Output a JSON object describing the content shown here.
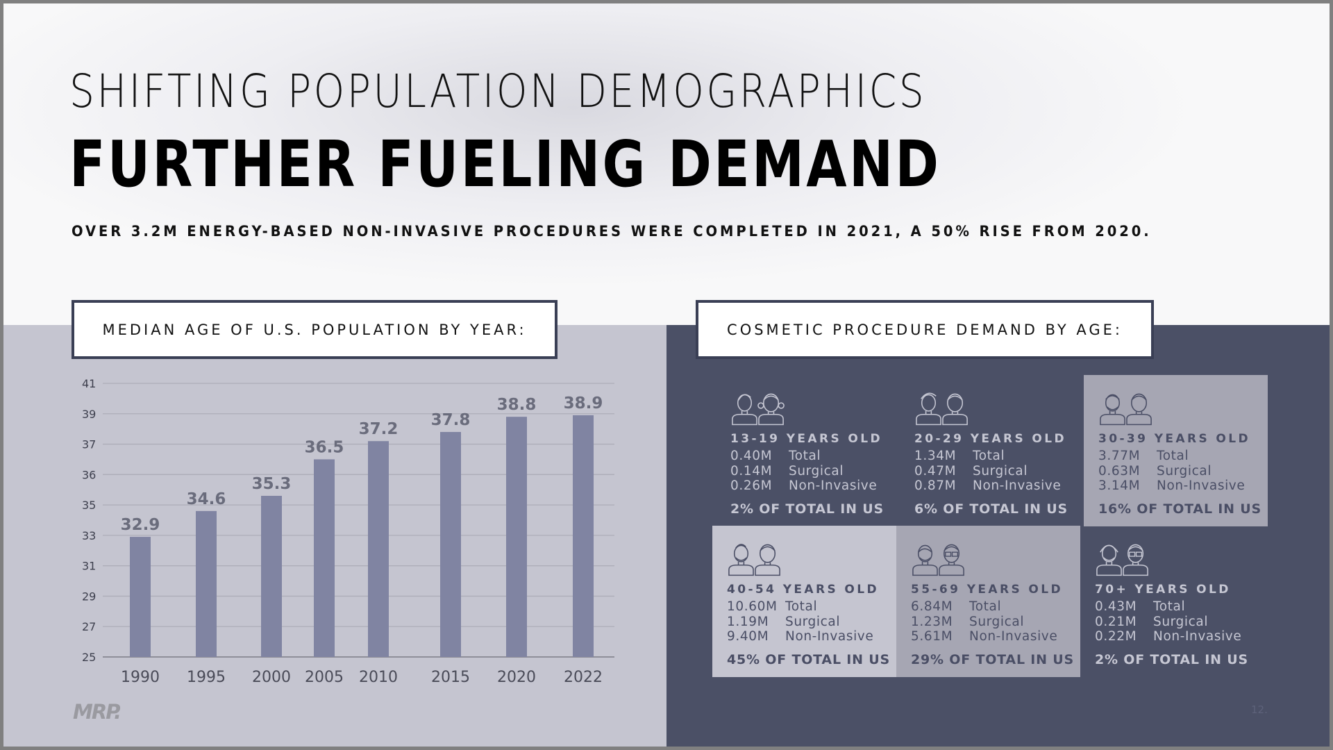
{
  "header": {
    "title_line1": "SHIFTING POPULATION DEMOGRAPHICS",
    "title_line2": "FURTHER FUELING DEMAND",
    "subtitle": "OVER 3.2M ENERGY-BASED NON-INVASIVE PROCEDURES WERE COMPLETED IN 2021, A 50% RISE FROM 2020."
  },
  "left_panel": {
    "label": "MEDIAN AGE OF U.S. POPULATION BY YEAR:"
  },
  "right_panel": {
    "label": "COSMETIC PROCEDURE DEMAND BY AGE:"
  },
  "chart_data": {
    "type": "bar",
    "title": "MEDIAN AGE OF U.S. POPULATION BY YEAR:",
    "xlabel": "",
    "ylabel": "",
    "categories": [
      "1990",
      "1995",
      "2000",
      "2005",
      "2010",
      "2015",
      "2020",
      "2022"
    ],
    "values": [
      32.9,
      34.6,
      35.3,
      36.5,
      37.2,
      37.8,
      38.8,
      38.9
    ],
    "value_labels": [
      "32.9",
      "34.6",
      "35.3",
      "36.5",
      "37.2",
      "37.8",
      "38.8",
      "38.9"
    ],
    "y_ticks": [
      25,
      27,
      29,
      31,
      33,
      35,
      36,
      37,
      39,
      41
    ],
    "ylim": [
      25,
      41
    ],
    "grid": true,
    "bar_color": "#8084a2"
  },
  "demand_cards": [
    {
      "age": "13-19 YEARS OLD",
      "icon": "teen-boy-girl-icon",
      "total": "0.40M",
      "surgical": "0.14M",
      "non_invasive": "0.26M",
      "share": "2% OF TOTAL IN US",
      "style": "dark"
    },
    {
      "age": "20-29 YEARS OLD",
      "icon": "young-adult-man-woman-icon",
      "total": "1.34M",
      "surgical": "0.47M",
      "non_invasive": "0.87M",
      "share": "6% OF TOTAL IN US",
      "style": "dark"
    },
    {
      "age": "30-39 YEARS OLD",
      "icon": "adult-bearded-man-woman-icon",
      "total": "3.77M",
      "surgical": "0.63M",
      "non_invasive": "3.14M",
      "share": "16% OF TOTAL IN US",
      "style": "mid"
    },
    {
      "age": "40-54 YEARS OLD",
      "icon": "middle-aged-man-woman-icon",
      "total": "10.60M",
      "surgical": "1.19M",
      "non_invasive": "9.40M",
      "share": "45% OF TOTAL IN US",
      "style": "light"
    },
    {
      "age": "55-69 YEARS OLD",
      "icon": "senior-man-woman-glasses-icon",
      "total": "6.84M",
      "surgical": "1.23M",
      "non_invasive": "5.61M",
      "share": "29% OF TOTAL IN US",
      "style": "mid"
    },
    {
      "age": "70+ YEARS OLD",
      "icon": "elderly-man-woman-icon",
      "total": "0.43M",
      "surgical": "0.21M",
      "non_invasive": "0.22M",
      "share": "2% OF TOTAL IN US",
      "style": "dark"
    }
  ],
  "stat_labels": {
    "total": "Total",
    "surgical": "Surgical",
    "non_invasive": "Non-Invasive"
  },
  "footer": {
    "logo": "MRP.",
    "page_number": "12."
  },
  "colors": {
    "frame": "#808080",
    "left_panel": "#c5c5d0",
    "right_panel": "#4b5066",
    "card_mid": "#a6a6b3",
    "bar": "#8084a2",
    "label_border": "#3a3f55"
  }
}
